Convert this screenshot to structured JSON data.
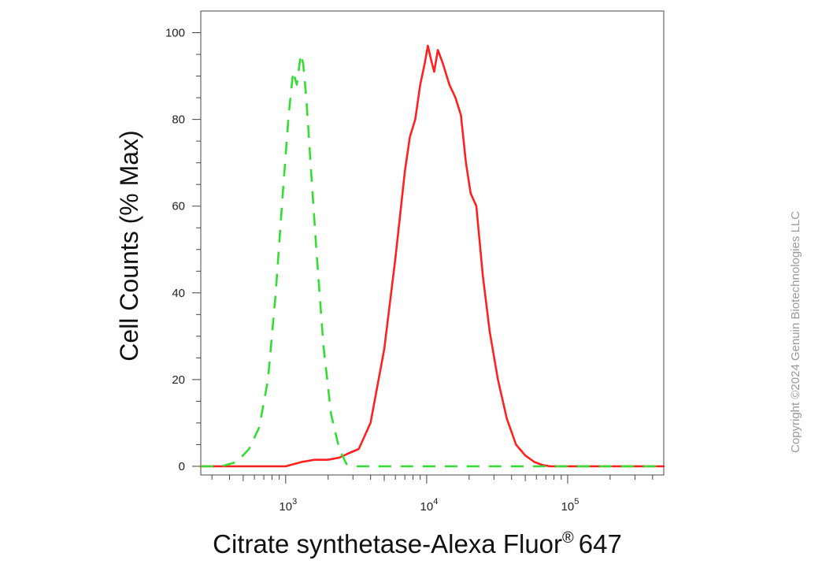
{
  "chart_data": {
    "type": "line",
    "xlabel": "Citrate synthetase-Alexa Fluor",
    "xlabel_superscript": "®",
    "xlabel_suffix": "647",
    "ylabel": "Cell Counts (% Max)",
    "xscale": "log",
    "xlim": [
      250,
      480000
    ],
    "ylim": [
      -2,
      105
    ],
    "y_ticks": [
      0,
      20,
      40,
      60,
      80,
      100
    ],
    "x_ticks": [
      {
        "value": 1000,
        "base": "10",
        "exp": "3"
      },
      {
        "value": 10000,
        "base": "10",
        "exp": "4"
      },
      {
        "value": 100000,
        "base": "10",
        "exp": "5"
      }
    ],
    "grid": false,
    "legend": "none",
    "series": [
      {
        "color": "#ff2020",
        "style": "solid",
        "x": [
          250,
          600,
          1000,
          1300,
          1600,
          2000,
          2400,
          2800,
          3300,
          4000,
          5000,
          6000,
          7000,
          7600,
          8300,
          9000,
          9700,
          10200,
          10700,
          11300,
          12000,
          13000,
          14500,
          16000,
          17500,
          19000,
          20500,
          22500,
          25000,
          28000,
          32000,
          37000,
          43000,
          50000,
          58000,
          66000,
          75000,
          90000,
          120000,
          200000,
          480000
        ],
        "y": [
          0,
          0,
          0,
          1,
          1.5,
          1.5,
          2,
          3,
          4,
          10,
          27,
          48,
          68,
          76,
          80,
          88,
          93,
          97,
          94,
          91,
          96,
          93,
          88,
          85,
          81,
          70,
          63,
          60,
          44,
          31,
          20,
          11,
          5,
          2.5,
          1,
          0.3,
          0,
          0,
          0,
          0,
          0
        ]
      },
      {
        "color": "#33dd33",
        "style": "dashed",
        "x": [
          250,
          350,
          450,
          550,
          650,
          750,
          850,
          950,
          1050,
          1130,
          1200,
          1280,
          1330,
          1400,
          1500,
          1650,
          1850,
          2100,
          2400,
          2700,
          3000,
          5000,
          20000,
          100000,
          480000
        ],
        "y": [
          0,
          0,
          1,
          4,
          9,
          20,
          40,
          62,
          81,
          91,
          88,
          95,
          93,
          85,
          70,
          50,
          28,
          12,
          4,
          0.5,
          0,
          0,
          0,
          0,
          0
        ]
      }
    ]
  },
  "copyright": "Copyright ©2024 Genuin Biotechnologies LLC"
}
